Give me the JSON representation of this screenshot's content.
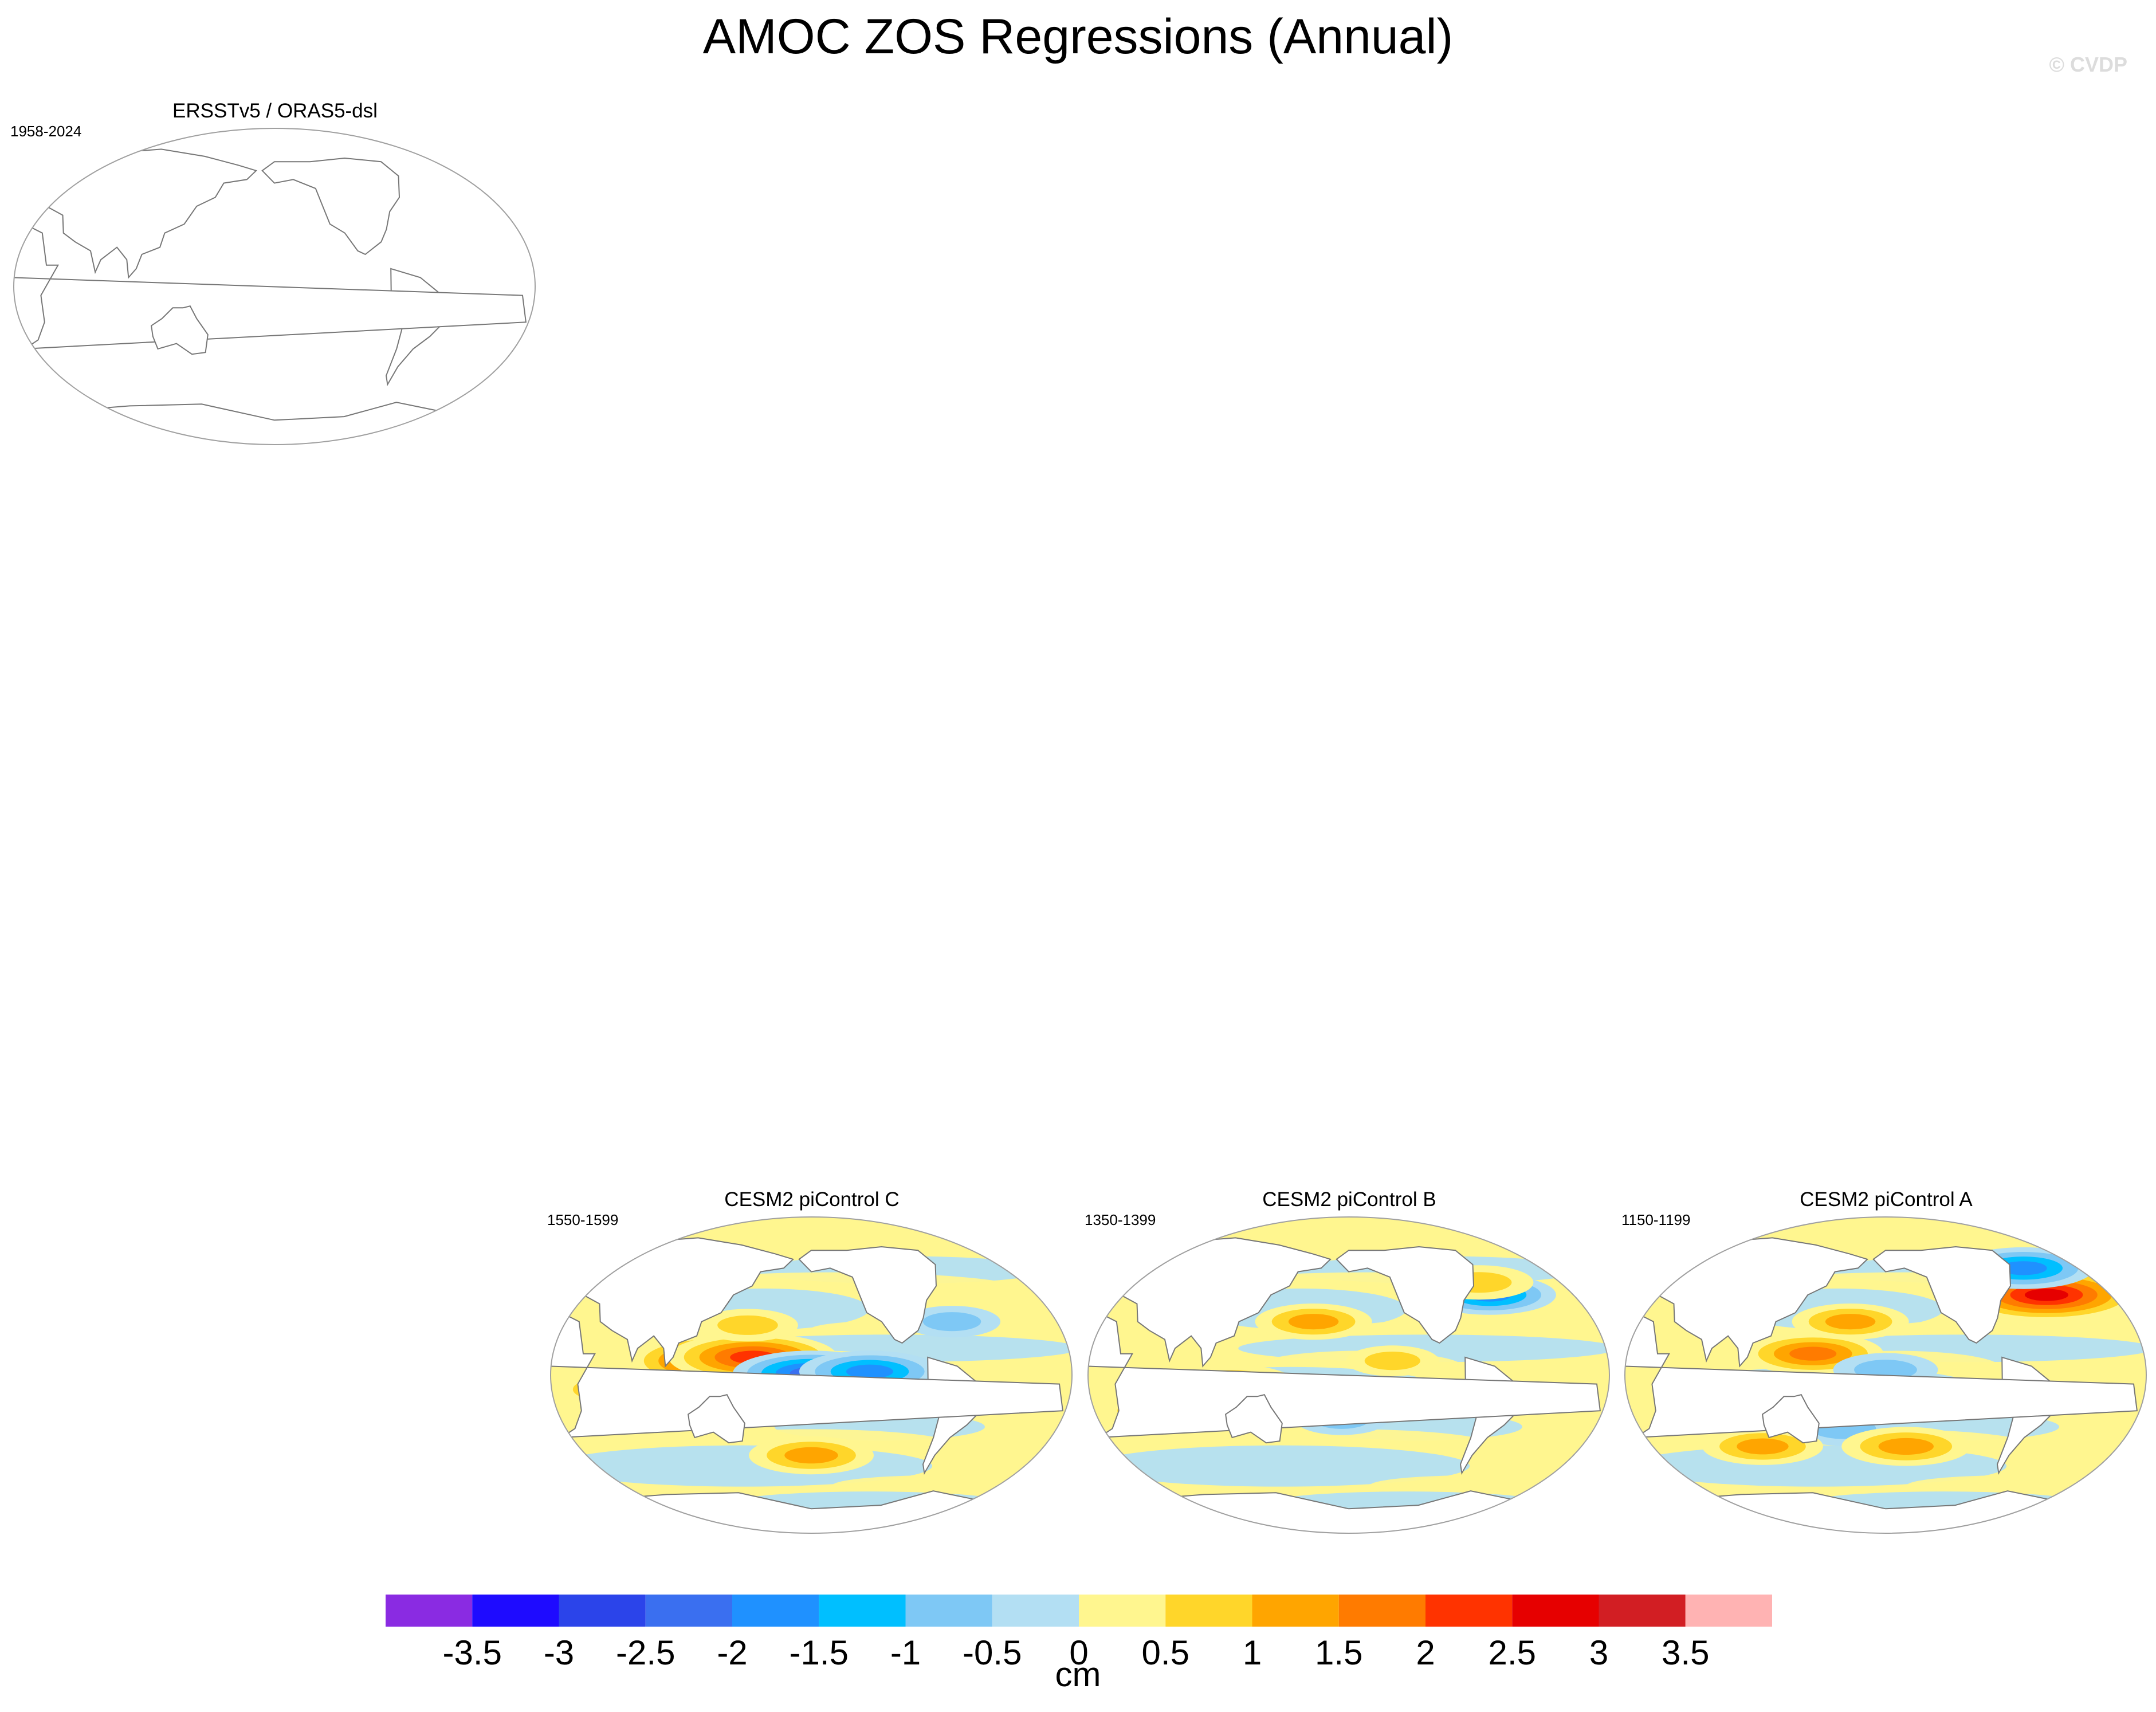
{
  "figure": {
    "title": "AMOC ZOS Regressions (Annual)",
    "watermark": "© CVDP"
  },
  "chart_data": {
    "type": "heatmap",
    "title": "AMOC ZOS Regressions (Annual)",
    "units": "cm",
    "projection": "Robinson, Pacific-centered",
    "panels": [
      {
        "id": "obs",
        "title": "ERSSTv5 / ORAS5-dsl",
        "years": "1958-2024",
        "has_data": false
      },
      {
        "id": "c",
        "title": "CESM2 piControl C",
        "years": "1550-1599",
        "has_data": true,
        "features": [
          {
            "lon": 140,
            "lat": 8,
            "value": 3.0
          },
          {
            "lon": 160,
            "lat": 10,
            "value": 2.5
          },
          {
            "lon": 200,
            "lat": 1,
            "value": -2.2
          },
          {
            "lon": 240,
            "lat": 2,
            "value": -1.8
          },
          {
            "lon": 185,
            "lat": -12,
            "value": -1.6
          },
          {
            "lon": 155,
            "lat": 28,
            "value": 0.8
          },
          {
            "lon": 65,
            "lat": -8,
            "value": 1.2
          },
          {
            "lon": 300,
            "lat": 30,
            "value": -0.7
          },
          {
            "lon": 200,
            "lat": -45,
            "value": 1.4
          }
        ]
      },
      {
        "id": "b",
        "title": "CESM2 piControl B",
        "years": "1350-1399",
        "has_data": true,
        "features": [
          {
            "lon": 120,
            "lat": -5,
            "value": 1.5
          },
          {
            "lon": 175,
            "lat": 30,
            "value": 1.2
          },
          {
            "lon": 305,
            "lat": 45,
            "value": -1.6
          },
          {
            "lon": 300,
            "lat": 52,
            "value": 1.0
          },
          {
            "lon": 195,
            "lat": -25,
            "value": -0.6
          },
          {
            "lon": 60,
            "lat": -20,
            "value": 0.8
          },
          {
            "lon": 230,
            "lat": 8,
            "value": 0.6
          }
        ]
      },
      {
        "id": "a",
        "title": "CESM2 piControl A",
        "years": "1150-1199",
        "has_data": true,
        "features": [
          {
            "lon": 320,
            "lat": 45,
            "value": 3.0
          },
          {
            "lon": 310,
            "lat": 60,
            "value": -1.8
          },
          {
            "lon": 150,
            "lat": 12,
            "value": 1.8
          },
          {
            "lon": 175,
            "lat": 30,
            "value": 1.2
          },
          {
            "lon": 200,
            "lat": 3,
            "value": -0.9
          },
          {
            "lon": 170,
            "lat": -30,
            "value": -1.0
          },
          {
            "lon": 215,
            "lat": -40,
            "value": 1.5
          },
          {
            "lon": 110,
            "lat": -40,
            "value": 1.3
          }
        ]
      }
    ],
    "colorbar": {
      "levels": [
        -3.5,
        -3,
        -2.5,
        -2,
        -1.5,
        -1,
        -0.5,
        0,
        0.5,
        1,
        1.5,
        2,
        2.5,
        3,
        3.5
      ],
      "tick_labels": [
        "-3.5",
        "-3",
        "-2.5",
        "-2",
        "-1.5",
        "-1",
        "-0.5",
        "0",
        "0.5",
        "1",
        "1.5",
        "2",
        "2.5",
        "3",
        "3.5"
      ],
      "colors": [
        "#8a2be2",
        "#1e0bff",
        "#2b44ea",
        "#3a6ff0",
        "#1f91ff",
        "#00bfff",
        "#7ec8f5",
        "#b3dff3",
        "#fff68f",
        "#ffd62a",
        "#ffa500",
        "#ff7b00",
        "#ff3300",
        "#e60000",
        "#d21e23",
        "#ffb3b3"
      ],
      "label": "cm"
    },
    "colors": {
      "land": "#ffffff",
      "coastline": "#777777",
      "map_outline": "#a0a0a0"
    }
  }
}
